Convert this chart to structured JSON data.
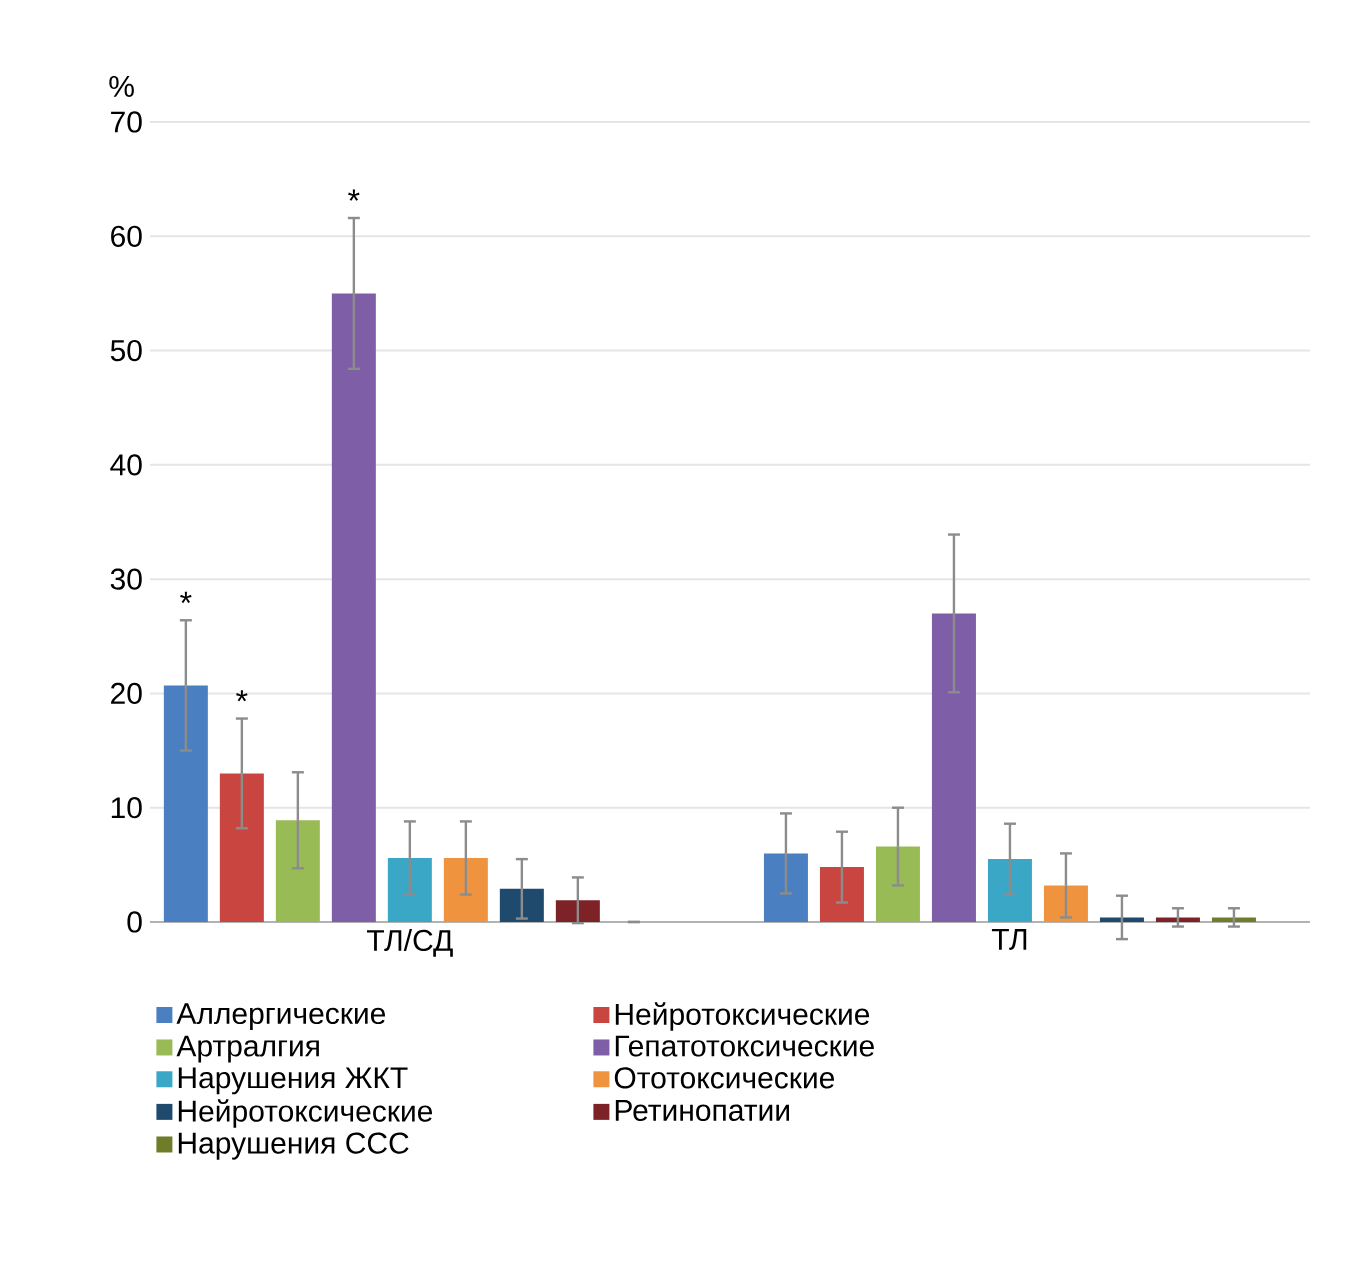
{
  "chart_data": {
    "type": "bar",
    "ylabel": "%",
    "categories": [
      "ТЛ/СД",
      "ТЛ"
    ],
    "series": [
      {
        "name": "Аллергические",
        "color": "#4a7fc1",
        "values": [
          20.7,
          6.0
        ],
        "errors": [
          5.7,
          3.5
        ],
        "value_labels": [
          "*",
          null
        ]
      },
      {
        "name": "Нейротоксические",
        "color": "#c9453f",
        "values": [
          13.0,
          4.8
        ],
        "errors": [
          4.8,
          3.1
        ],
        "value_labels": [
          "*",
          null
        ]
      },
      {
        "name": "Артралгия",
        "color": "#98bb55",
        "values": [
          8.9,
          6.6
        ],
        "errors": [
          4.2,
          3.4
        ]
      },
      {
        "name": "Гепатотоксические",
        "color": "#7e5ea6",
        "values": [
          55.0,
          27.0
        ],
        "errors": [
          6.6,
          6.9
        ],
        "value_labels": [
          "*",
          null
        ]
      },
      {
        "name": "Нарушения ЖКТ",
        "color": "#3aa7c7",
        "values": [
          5.6,
          5.5
        ],
        "errors": [
          3.2,
          3.1
        ]
      },
      {
        "name": "Ототоксические",
        "color": "#f0933f",
        "values": [
          5.6,
          3.2
        ],
        "errors": [
          3.2,
          2.8
        ]
      },
      {
        "name": "Нейротоксические",
        "color": "#1f4a6e",
        "values": [
          2.9,
          0.4
        ],
        "errors": [
          2.6,
          1.9
        ]
      },
      {
        "name": "Ретинопатии",
        "color": "#7d2226",
        "values": [
          1.9,
          0.4
        ],
        "errors": [
          2.0,
          0.8
        ]
      },
      {
        "name": "Нарушения ССС",
        "color": "#6f7d2b",
        "values": [
          0,
          0.4
        ],
        "errors": [
          null,
          0.8
        ]
      }
    ],
    "ylim": [
      0,
      70
    ],
    "yticks": [
      0,
      10,
      20,
      30,
      40,
      50,
      60,
      70
    ],
    "grid": "y",
    "legend": "bottom"
  }
}
